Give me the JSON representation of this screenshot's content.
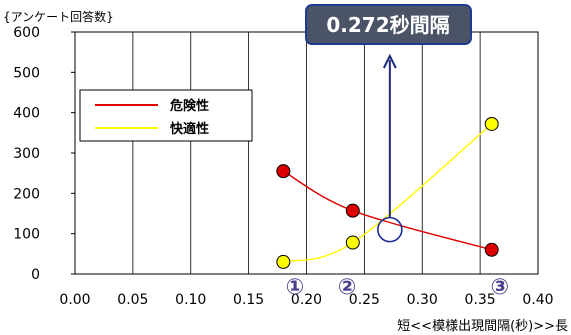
{
  "chart_data": {
    "type": "line",
    "title": "",
    "ylabel": "{アンケート回答数}",
    "xlabel": "短<<模様出現間隔(秒)>>長",
    "xlim": [
      0,
      0.4
    ],
    "ylim": [
      0,
      600
    ],
    "x_ticks": [
      "0.00",
      "0.05",
      "0.10",
      "0.15",
      "0.20",
      "0.25",
      "0.30",
      "0.35",
      "0.40"
    ],
    "y_ticks": [
      "0",
      "100",
      "200",
      "300",
      "400",
      "500",
      "600"
    ],
    "grid": "vertical",
    "legend_position": "left",
    "series": [
      {
        "name": "危険性",
        "color": "#e00000",
        "marker_color": "#dd0000",
        "points": [
          {
            "x": 0.18,
            "y": 255
          },
          {
            "x": 0.24,
            "y": 157
          },
          {
            "x": 0.36,
            "y": 60
          }
        ]
      },
      {
        "name": "快適性",
        "color": "#ffff00",
        "marker_color": "#ffff00",
        "points": [
          {
            "x": 0.18,
            "y": 30
          },
          {
            "x": 0.24,
            "y": 78
          },
          {
            "x": 0.36,
            "y": 372
          }
        ]
      }
    ],
    "intersection": {
      "x": 0.272,
      "y": 110
    },
    "callout_text": "0.272秒間隔",
    "markers": [
      {
        "label": "①",
        "x": 0.19
      },
      {
        "label": "②",
        "x": 0.235
      },
      {
        "label": "③",
        "x": 0.367
      }
    ]
  }
}
